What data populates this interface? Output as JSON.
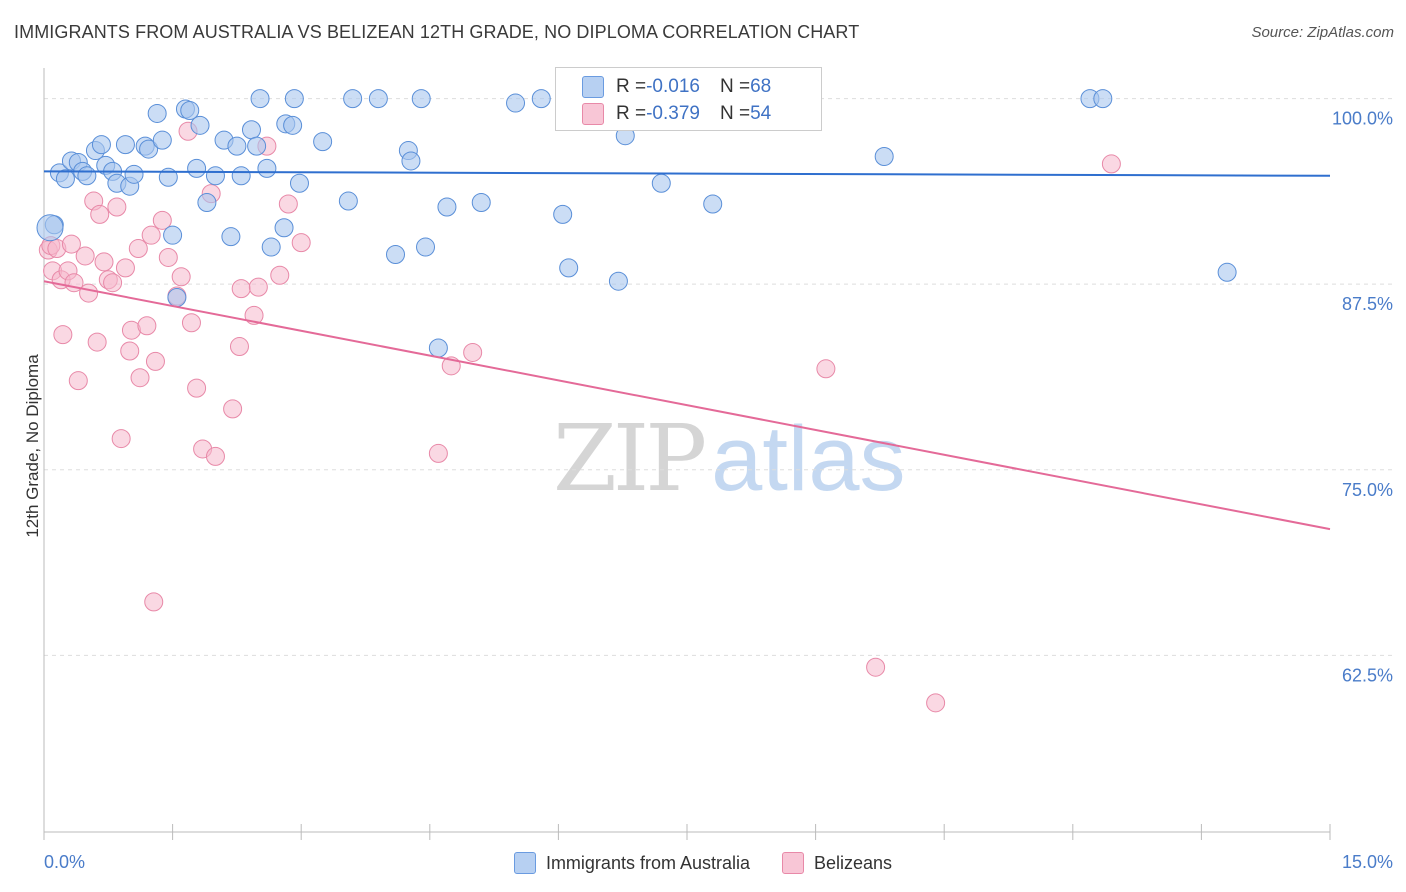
{
  "header": {
    "title": "IMMIGRANTS FROM AUSTRALIA VS BELIZEAN 12TH GRADE, NO DIPLOMA CORRELATION CHART",
    "source": "Source: ZipAtlas.com"
  },
  "legend": {
    "rows": [
      {
        "r_label": "R = ",
        "r_value": "-0.016",
        "n_label": "N = ",
        "n_value": "68"
      },
      {
        "r_label": "R = ",
        "r_value": "-0.379",
        "n_label": "N = ",
        "n_value": "54"
      }
    ]
  },
  "watermark": {
    "zip": "ZIP",
    "atlas": "atlas"
  },
  "colors": {
    "blue_fill": "#a9c6ee",
    "blue_stroke": "#5a8fd8",
    "blue_line": "#2f6fcf",
    "pink_fill": "#f5b8cc",
    "pink_stroke": "#e889a8",
    "pink_line": "#e46a98",
    "tick_text": "#4a7cc9",
    "grid": "#dddddd"
  },
  "chart_data": {
    "type": "scatter",
    "title": "IMMIGRANTS FROM AUSTRALIA VS BELIZEAN 12TH GRADE, NO DIPLOMA CORRELATION CHART",
    "xlabel": "",
    "ylabel": "12th Grade, No Diploma",
    "xlim": [
      0,
      15
    ],
    "ylim": [
      50.6,
      102.6
    ],
    "x_tick_labels": [
      "0.0%",
      "15.0%"
    ],
    "y_ticks": [
      62.5,
      75.0,
      87.5,
      100.0
    ],
    "y_tick_labels": [
      "62.5%",
      "75.0%",
      "87.5%",
      "100.0%"
    ],
    "grid": "horizontal dashed",
    "legend_position": "bottom-center",
    "series": [
      {
        "name": "Immigrants from Australia",
        "color": "#a9c6ee",
        "r": -0.016,
        "n": 68,
        "trend": {
          "x": [
            0,
            15
          ],
          "y": [
            95.1,
            94.8
          ]
        },
        "points": [
          [
            0.12,
            91.5
          ],
          [
            0.18,
            95.0
          ],
          [
            0.25,
            94.6
          ],
          [
            0.32,
            95.8
          ],
          [
            0.4,
            95.7
          ],
          [
            0.45,
            95.1
          ],
          [
            0.5,
            94.8
          ],
          [
            0.6,
            96.5
          ],
          [
            0.67,
            96.9
          ],
          [
            0.72,
            95.5
          ],
          [
            0.8,
            95.1
          ],
          [
            0.85,
            94.3
          ],
          [
            0.95,
            96.9
          ],
          [
            1.0,
            94.1
          ],
          [
            1.05,
            94.9
          ],
          [
            1.18,
            96.8
          ],
          [
            1.22,
            96.6
          ],
          [
            1.32,
            99.0
          ],
          [
            1.38,
            97.2
          ],
          [
            1.45,
            94.7
          ],
          [
            1.5,
            90.8
          ],
          [
            1.55,
            86.6
          ],
          [
            1.65,
            99.3
          ],
          [
            1.7,
            99.2
          ],
          [
            1.78,
            95.3
          ],
          [
            1.82,
            98.2
          ],
          [
            1.9,
            93.0
          ],
          [
            2.0,
            94.8
          ],
          [
            2.1,
            97.2
          ],
          [
            2.18,
            90.7
          ],
          [
            2.25,
            96.8
          ],
          [
            2.3,
            94.8
          ],
          [
            2.42,
            97.9
          ],
          [
            2.48,
            96.8
          ],
          [
            2.52,
            100.0
          ],
          [
            2.6,
            95.3
          ],
          [
            2.65,
            90.0
          ],
          [
            2.8,
            91.3
          ],
          [
            2.82,
            98.3
          ],
          [
            2.9,
            98.2
          ],
          [
            2.92,
            100.0
          ],
          [
            2.98,
            94.3
          ],
          [
            3.25,
            97.1
          ],
          [
            3.55,
            93.1
          ],
          [
            3.6,
            100.0
          ],
          [
            3.9,
            100.0
          ],
          [
            4.1,
            89.5
          ],
          [
            4.25,
            96.5
          ],
          [
            4.28,
            95.8
          ],
          [
            4.4,
            100.0
          ],
          [
            4.45,
            90.0
          ],
          [
            4.6,
            83.2
          ],
          [
            4.7,
            92.7
          ],
          [
            5.1,
            93.0
          ],
          [
            5.5,
            99.7
          ],
          [
            5.8,
            100.0
          ],
          [
            6.05,
            92.2
          ],
          [
            6.12,
            88.6
          ],
          [
            6.7,
            87.7
          ],
          [
            6.78,
            97.5
          ],
          [
            6.92,
            99.2
          ],
          [
            7.2,
            94.3
          ],
          [
            7.8,
            92.9
          ],
          [
            9.8,
            96.1
          ],
          [
            12.2,
            100.0
          ],
          [
            12.35,
            100.0
          ],
          [
            13.8,
            88.3
          ],
          [
            0.07,
            91.3
          ]
        ]
      },
      {
        "name": "Belizeans",
        "color": "#f5b8cc",
        "r": -0.379,
        "n": 54,
        "trend": {
          "x": [
            0,
            15
          ],
          "y": [
            87.7,
            71.0
          ]
        },
        "points": [
          [
            0.05,
            89.8
          ],
          [
            0.08,
            90.1
          ],
          [
            0.1,
            88.4
          ],
          [
            0.15,
            89.9
          ],
          [
            0.2,
            87.8
          ],
          [
            0.22,
            84.1
          ],
          [
            0.28,
            88.4
          ],
          [
            0.32,
            90.2
          ],
          [
            0.35,
            87.6
          ],
          [
            0.4,
            81.0
          ],
          [
            0.48,
            89.4
          ],
          [
            0.52,
            86.9
          ],
          [
            0.58,
            93.1
          ],
          [
            0.62,
            83.6
          ],
          [
            0.65,
            92.2
          ],
          [
            0.7,
            89.0
          ],
          [
            0.75,
            87.8
          ],
          [
            0.8,
            87.6
          ],
          [
            0.85,
            92.7
          ],
          [
            0.9,
            77.1
          ],
          [
            0.95,
            88.6
          ],
          [
            1.0,
            83.0
          ],
          [
            1.02,
            84.4
          ],
          [
            1.1,
            89.9
          ],
          [
            1.12,
            81.2
          ],
          [
            1.2,
            84.7
          ],
          [
            1.25,
            90.8
          ],
          [
            1.3,
            82.3
          ],
          [
            1.38,
            91.8
          ],
          [
            1.45,
            89.3
          ],
          [
            1.55,
            86.7
          ],
          [
            1.6,
            88.0
          ],
          [
            1.68,
            97.8
          ],
          [
            1.72,
            84.9
          ],
          [
            1.78,
            80.5
          ],
          [
            1.85,
            76.4
          ],
          [
            1.95,
            93.6
          ],
          [
            2.0,
            75.9
          ],
          [
            2.2,
            79.1
          ],
          [
            2.28,
            83.3
          ],
          [
            2.3,
            87.2
          ],
          [
            2.45,
            85.4
          ],
          [
            2.5,
            87.3
          ],
          [
            2.6,
            96.8
          ],
          [
            2.75,
            88.1
          ],
          [
            2.85,
            92.9
          ],
          [
            3.0,
            90.3
          ],
          [
            1.28,
            66.1
          ],
          [
            4.6,
            76.1
          ],
          [
            4.75,
            82.0
          ],
          [
            5.0,
            82.9
          ],
          [
            9.12,
            81.8
          ],
          [
            9.7,
            61.7
          ],
          [
            10.4,
            59.3
          ]
        ],
        "extra_points": [
          [
            12.45,
            95.6
          ]
        ]
      }
    ]
  },
  "bottom_legend": {
    "items": [
      {
        "label": "Immigrants from Australia"
      },
      {
        "label": "Belizeans"
      }
    ]
  },
  "axis": {
    "ylabel": "12th Grade, No Diploma",
    "x_min_label": "0.0%",
    "x_max_label": "15.0%"
  }
}
